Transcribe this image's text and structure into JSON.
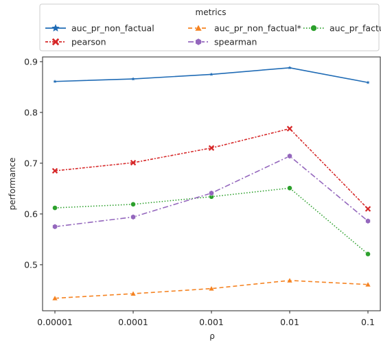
{
  "chart_data": {
    "type": "line",
    "xlabel": "ρ",
    "ylabel": "performance",
    "categories": [
      "0.00001",
      "0.0001",
      "0.001",
      "0.01",
      "0.1"
    ],
    "yticks": [
      "0.5",
      "0.6",
      "0.7",
      "0.8",
      "0.9"
    ],
    "ylim": [
      0.41,
      0.91
    ],
    "grid": false,
    "legend": {
      "title": "metrics",
      "placement": "top-center",
      "columns": 3
    },
    "series": [
      {
        "name": "auc_pr_non_factual",
        "color": "#1f6bb5",
        "dash": "solid",
        "marker": "star",
        "values": [
          0.861,
          0.866,
          0.875,
          0.888,
          0.859
        ]
      },
      {
        "name": "auc_pr_non_factual*",
        "color": "#f58220",
        "dash": "dashed",
        "marker": "triangle",
        "values": [
          0.434,
          0.443,
          0.453,
          0.469,
          0.461
        ]
      },
      {
        "name": "auc_pr_factual",
        "color": "#2ca02c",
        "dash": "dotted",
        "marker": "circle",
        "values": [
          0.612,
          0.619,
          0.634,
          0.651,
          0.521
        ]
      },
      {
        "name": "pearson",
        "color": "#d62728",
        "dash": "dashdot2",
        "marker": "x",
        "values": [
          0.685,
          0.701,
          0.73,
          0.768,
          0.61
        ]
      },
      {
        "name": "spearman",
        "color": "#9467bd",
        "dash": "dashdot",
        "marker": "hexagon",
        "values": [
          0.575,
          0.594,
          0.641,
          0.714,
          0.586
        ]
      }
    ]
  }
}
